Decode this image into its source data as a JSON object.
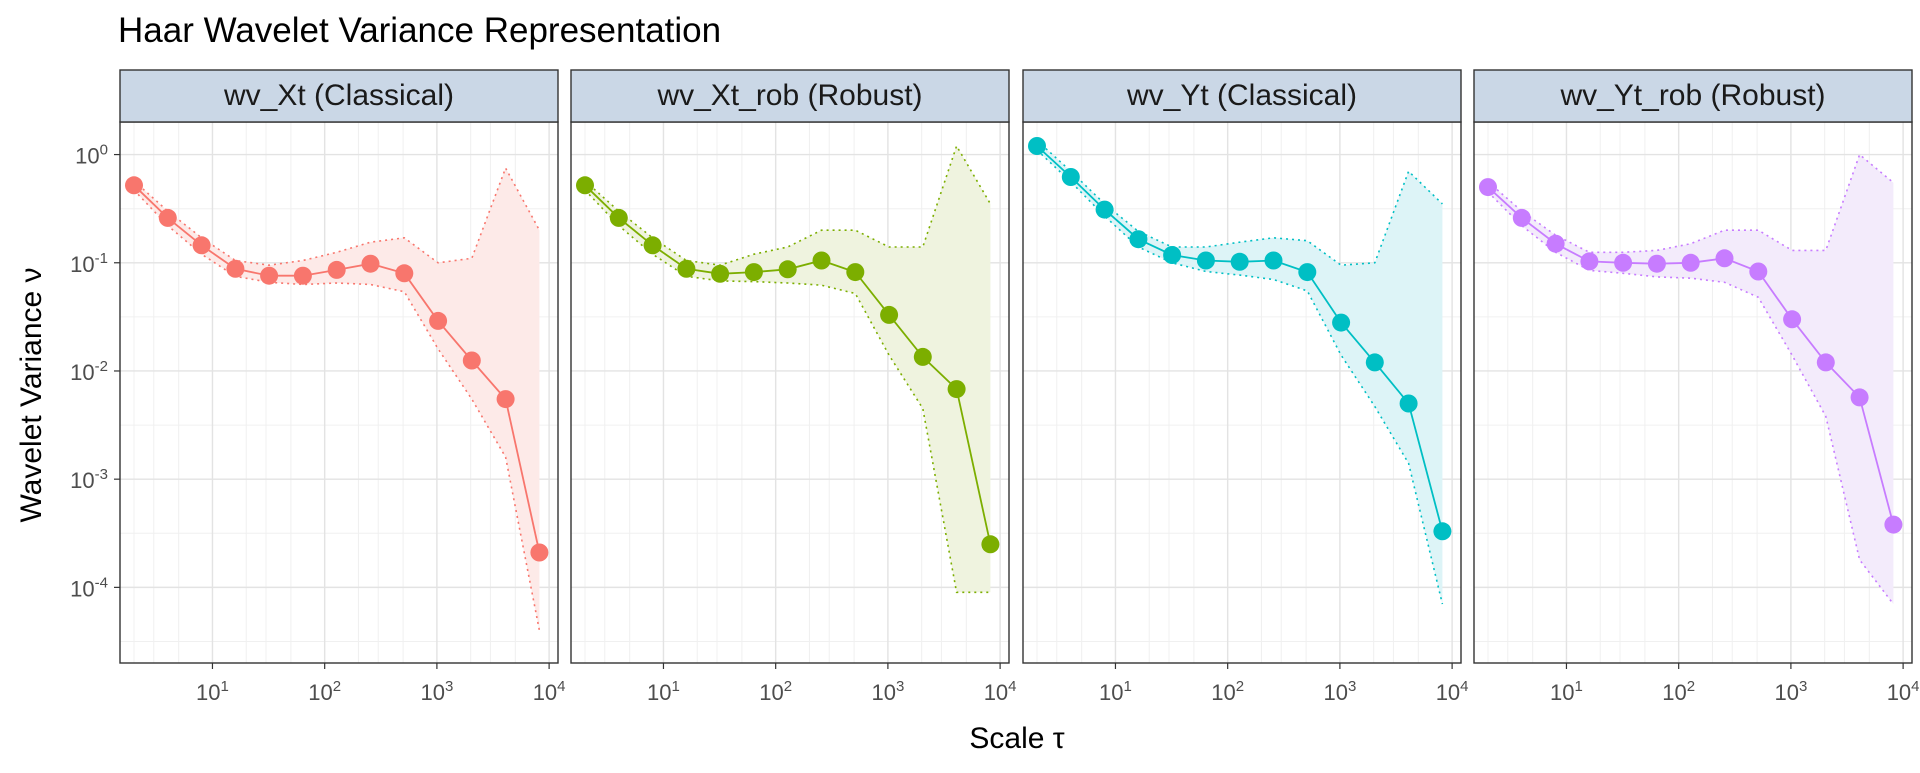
{
  "chart_data": {
    "type": "line",
    "title": "Haar Wavelet Variance Representation",
    "xlabel": "Scale τ",
    "ylabel": "Wavelet Variance ν",
    "x_scale": "log10",
    "y_scale": "log10",
    "xlim": [
      1.5,
      12000
    ],
    "ylim": [
      2e-05,
      2.0
    ],
    "x_ticks": [
      {
        "base": "10",
        "exp": "1",
        "value": 10
      },
      {
        "base": "10",
        "exp": "2",
        "value": 100
      },
      {
        "base": "10",
        "exp": "3",
        "value": 1000
      },
      {
        "base": "10",
        "exp": "4",
        "value": 10000
      }
    ],
    "y_ticks": [
      {
        "base": "10",
        "exp": "0",
        "value": 1
      },
      {
        "base": "10",
        "exp": "-1",
        "value": 0.1
      },
      {
        "base": "10",
        "exp": "-2",
        "value": 0.01
      },
      {
        "base": "10",
        "exp": "-3",
        "value": 0.001
      },
      {
        "base": "10",
        "exp": "-4",
        "value": 0.0001
      }
    ],
    "grid": true,
    "scales": [
      2,
      4,
      8,
      16,
      32,
      64,
      128,
      256,
      512,
      1024,
      2048,
      4096,
      8192
    ],
    "panels": [
      {
        "label": "wv_Xt (Classical)",
        "color": "#F8766D",
        "fill": "#FDEAE8",
        "variance": [
          0.52,
          0.26,
          0.145,
          0.088,
          0.076,
          0.076,
          0.086,
          0.098,
          0.08,
          0.029,
          0.0125,
          0.0055,
          0.00021
        ],
        "ci_low": [
          0.47,
          0.22,
          0.12,
          0.075,
          0.066,
          0.063,
          0.065,
          0.063,
          0.054,
          0.016,
          0.0055,
          0.0016,
          4e-05
        ],
        "ci_high": [
          0.57,
          0.3,
          0.17,
          0.105,
          0.095,
          0.105,
          0.125,
          0.155,
          0.17,
          0.1,
          0.11,
          0.75,
          0.2
        ]
      },
      {
        "label": "wv_Xt_rob (Robust)",
        "color": "#7CAE00",
        "fill": "#EFF3DF",
        "variance": [
          0.52,
          0.26,
          0.145,
          0.088,
          0.079,
          0.082,
          0.087,
          0.105,
          0.082,
          0.033,
          0.0135,
          0.0068,
          0.00025
        ],
        "ci_low": [
          0.47,
          0.22,
          0.12,
          0.075,
          0.068,
          0.067,
          0.065,
          0.062,
          0.052,
          0.014,
          0.0045,
          9e-05,
          9e-05
        ],
        "ci_high": [
          0.57,
          0.3,
          0.17,
          0.105,
          0.095,
          0.12,
          0.14,
          0.2,
          0.2,
          0.14,
          0.14,
          1.2,
          0.35
        ]
      },
      {
        "label": "wv_Yt (Classical)",
        "color": "#00BFC4",
        "fill": "#DDF4F7",
        "variance": [
          1.2,
          0.62,
          0.31,
          0.165,
          0.118,
          0.105,
          0.102,
          0.105,
          0.082,
          0.028,
          0.012,
          0.005,
          0.00033
        ],
        "ci_low": [
          1.1,
          0.56,
          0.27,
          0.14,
          0.1,
          0.083,
          0.077,
          0.07,
          0.055,
          0.014,
          0.0047,
          0.0014,
          7e-05
        ],
        "ci_high": [
          1.35,
          0.7,
          0.35,
          0.195,
          0.14,
          0.14,
          0.155,
          0.17,
          0.16,
          0.095,
          0.1,
          0.7,
          0.35
        ]
      },
      {
        "label": "wv_Yt_rob (Robust)",
        "color": "#C77CFF",
        "fill": "#F3EBFB",
        "variance": [
          0.5,
          0.26,
          0.15,
          0.103,
          0.1,
          0.098,
          0.1,
          0.11,
          0.083,
          0.03,
          0.012,
          0.0057,
          0.00038
        ],
        "ci_low": [
          0.45,
          0.22,
          0.125,
          0.085,
          0.08,
          0.074,
          0.072,
          0.066,
          0.048,
          0.014,
          0.0038,
          0.00018,
          7e-05
        ],
        "ci_high": [
          0.56,
          0.3,
          0.18,
          0.125,
          0.125,
          0.13,
          0.15,
          0.2,
          0.2,
          0.13,
          0.13,
          1.0,
          0.55
        ]
      }
    ]
  }
}
